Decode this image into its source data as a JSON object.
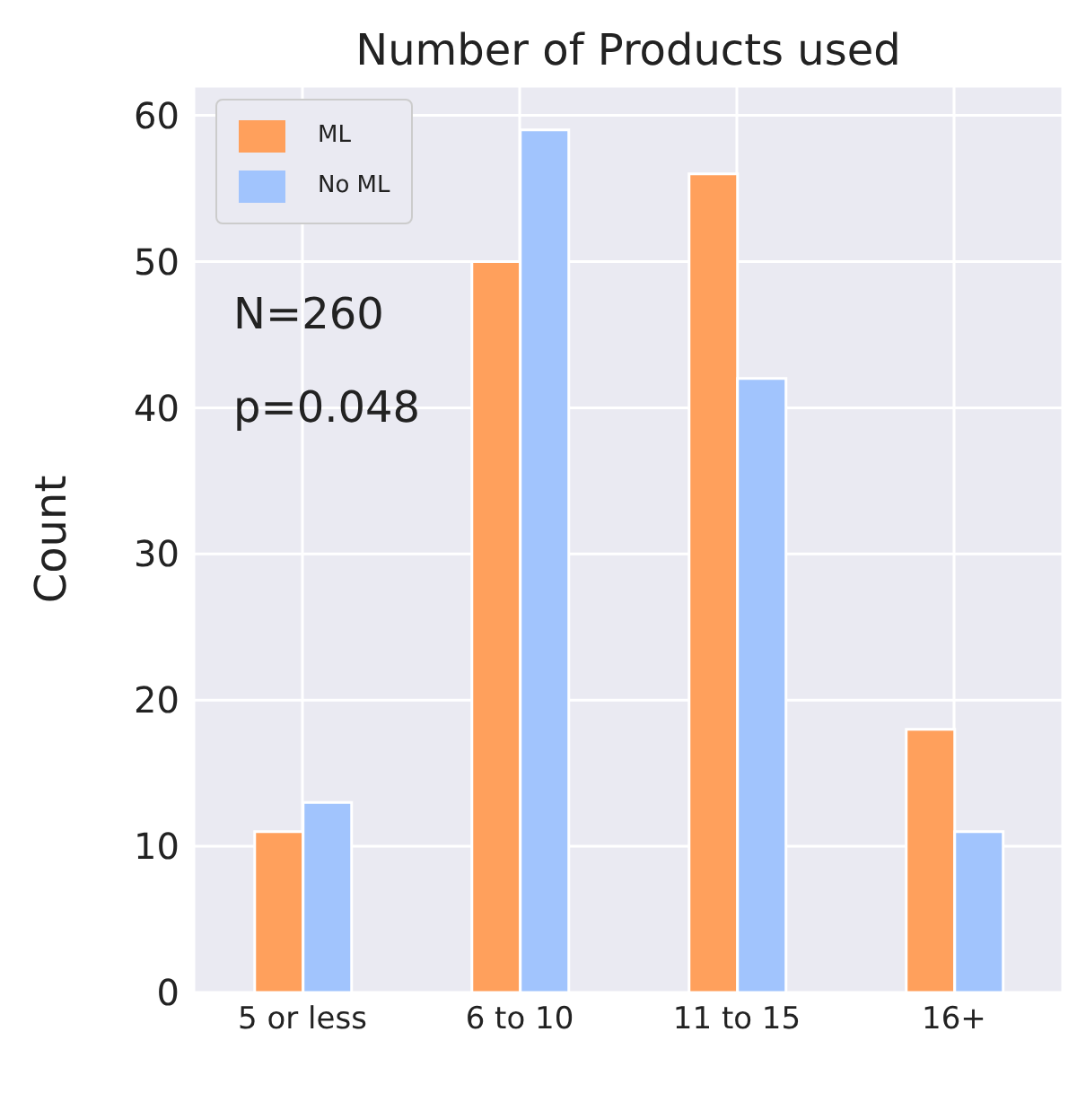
{
  "chart_data": {
    "type": "bar",
    "title": "Number of Products used",
    "ylabel": "Count",
    "categories": [
      "5 or less",
      "6 to 10",
      "11 to 15",
      "16+"
    ],
    "series": [
      {
        "name": "ML",
        "color": "#ffa05c",
        "values": [
          11,
          50,
          56,
          18
        ]
      },
      {
        "name": "No ML",
        "color": "#a1c4fd",
        "values": [
          13,
          59,
          42,
          11
        ]
      }
    ],
    "ylim": [
      0,
      62
    ],
    "yticks": [
      0,
      10,
      20,
      30,
      40,
      50,
      60
    ],
    "grid": true,
    "legend": "top left",
    "annotations": [
      "N=260",
      "p=0.048"
    ]
  }
}
